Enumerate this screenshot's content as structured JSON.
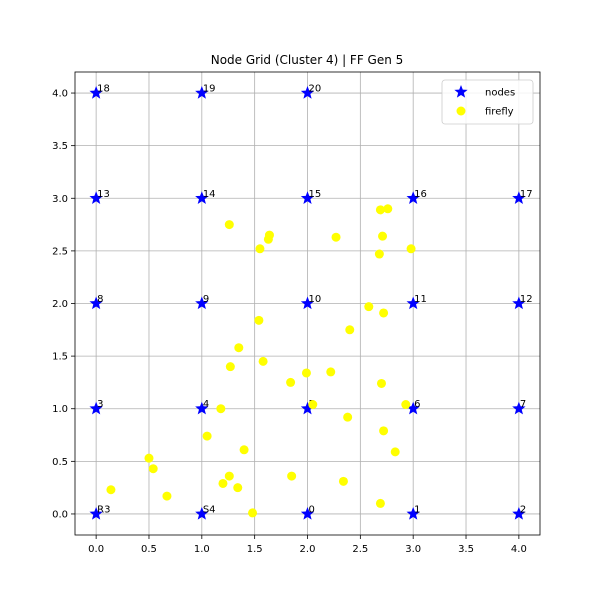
{
  "chart_data": {
    "type": "scatter",
    "title": "Node Grid (Cluster 4) | FF Gen 5",
    "xlabel": "",
    "ylabel": "",
    "xlim": [
      -0.2,
      4.2
    ],
    "ylim": [
      -0.2,
      4.2
    ],
    "x_ticks": [
      "0.0",
      "0.5",
      "1.0",
      "1.5",
      "2.0",
      "2.5",
      "3.0",
      "3.5",
      "4.0"
    ],
    "y_ticks": [
      "0.0",
      "0.5",
      "1.0",
      "1.5",
      "2.0",
      "2.5",
      "3.0",
      "3.5",
      "4.0"
    ],
    "grid": true,
    "legend_position": "top-right",
    "series": [
      {
        "name": "nodes",
        "marker": "star",
        "color": "#0000ff",
        "points": [
          {
            "x": 2,
            "y": 0,
            "label": "0"
          },
          {
            "x": 3,
            "y": 0,
            "label": "1"
          },
          {
            "x": 4,
            "y": 0,
            "label": "2"
          },
          {
            "x": 0,
            "y": 1,
            "label": "3"
          },
          {
            "x": 1,
            "y": 1,
            "label": "4"
          },
          {
            "x": 2,
            "y": 1,
            "label": "5"
          },
          {
            "x": 3,
            "y": 1,
            "label": "6"
          },
          {
            "x": 4,
            "y": 1,
            "label": "7"
          },
          {
            "x": 0,
            "y": 2,
            "label": "8"
          },
          {
            "x": 1,
            "y": 2,
            "label": "9"
          },
          {
            "x": 2,
            "y": 2,
            "label": "10"
          },
          {
            "x": 3,
            "y": 2,
            "label": "11"
          },
          {
            "x": 4,
            "y": 2,
            "label": "12"
          },
          {
            "x": 0,
            "y": 3,
            "label": "13"
          },
          {
            "x": 1,
            "y": 3,
            "label": "14"
          },
          {
            "x": 2,
            "y": 3,
            "label": "15"
          },
          {
            "x": 3,
            "y": 3,
            "label": "16"
          },
          {
            "x": 4,
            "y": 3,
            "label": "17"
          },
          {
            "x": 0,
            "y": 4,
            "label": "18"
          },
          {
            "x": 1,
            "y": 4,
            "label": "19"
          },
          {
            "x": 2,
            "y": 4,
            "label": "20"
          },
          {
            "x": 0,
            "y": 0,
            "label": "R3"
          },
          {
            "x": 1,
            "y": 0,
            "label": "S4"
          }
        ]
      },
      {
        "name": "firefly",
        "marker": "circle",
        "color": "#ffff00",
        "points": [
          {
            "x": 0.14,
            "y": 0.23
          },
          {
            "x": 0.5,
            "y": 0.53
          },
          {
            "x": 0.54,
            "y": 0.43
          },
          {
            "x": 0.67,
            "y": 0.17
          },
          {
            "x": 1.05,
            "y": 0.74
          },
          {
            "x": 1.18,
            "y": 1.0
          },
          {
            "x": 1.2,
            "y": 0.29
          },
          {
            "x": 1.26,
            "y": 0.36
          },
          {
            "x": 1.27,
            "y": 1.4
          },
          {
            "x": 1.34,
            "y": 0.25
          },
          {
            "x": 1.35,
            "y": 1.58
          },
          {
            "x": 1.4,
            "y": 0.61
          },
          {
            "x": 1.48,
            "y": 0.01
          },
          {
            "x": 1.26,
            "y": 2.75
          },
          {
            "x": 1.54,
            "y": 1.84
          },
          {
            "x": 1.55,
            "y": 2.52
          },
          {
            "x": 1.58,
            "y": 1.45
          },
          {
            "x": 1.63,
            "y": 2.61
          },
          {
            "x": 1.64,
            "y": 2.65
          },
          {
            "x": 1.84,
            "y": 1.25
          },
          {
            "x": 1.85,
            "y": 0.36
          },
          {
            "x": 1.99,
            "y": 1.34
          },
          {
            "x": 2.05,
            "y": 1.04
          },
          {
            "x": 2.22,
            "y": 1.35
          },
          {
            "x": 2.27,
            "y": 2.63
          },
          {
            "x": 2.34,
            "y": 0.31
          },
          {
            "x": 2.38,
            "y": 0.92
          },
          {
            "x": 2.4,
            "y": 1.75
          },
          {
            "x": 2.58,
            "y": 1.97
          },
          {
            "x": 2.68,
            "y": 2.47
          },
          {
            "x": 2.69,
            "y": 0.1
          },
          {
            "x": 2.69,
            "y": 2.89
          },
          {
            "x": 2.7,
            "y": 1.24
          },
          {
            "x": 2.71,
            "y": 2.64
          },
          {
            "x": 2.72,
            "y": 0.79
          },
          {
            "x": 2.72,
            "y": 1.91
          },
          {
            "x": 2.76,
            "y": 2.9
          },
          {
            "x": 2.83,
            "y": 0.59
          },
          {
            "x": 2.93,
            "y": 1.04
          },
          {
            "x": 2.98,
            "y": 2.52
          }
        ]
      }
    ]
  }
}
